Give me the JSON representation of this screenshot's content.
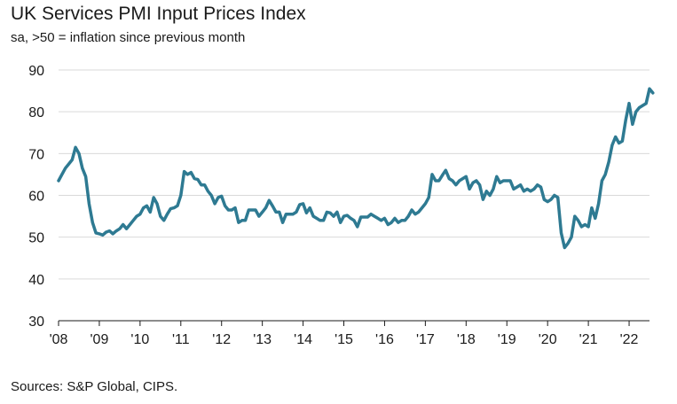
{
  "chart_data": {
    "type": "line",
    "title": "UK Services PMI Input Prices Index",
    "subtitle": "sa, >50 = inflation since previous month",
    "source": "Sources: S&P Global, CIPS.",
    "xlabel": "",
    "ylabel": "",
    "ylim": [
      30,
      90
    ],
    "yticks": [
      30,
      40,
      50,
      60,
      70,
      80,
      90
    ],
    "grid": true,
    "x_range": [
      2008.0,
      2022.5
    ],
    "xticks": [
      {
        "label": "'08",
        "x": 2008
      },
      {
        "label": "'09",
        "x": 2009
      },
      {
        "label": "'10",
        "x": 2010
      },
      {
        "label": "'11",
        "x": 2011
      },
      {
        "label": "'12",
        "x": 2012
      },
      {
        "label": "'13",
        "x": 2013
      },
      {
        "label": "'14",
        "x": 2014
      },
      {
        "label": "'15",
        "x": 2015
      },
      {
        "label": "'16",
        "x": 2016
      },
      {
        "label": "'17",
        "x": 2017
      },
      {
        "label": "'18",
        "x": 2018
      },
      {
        "label": "'19",
        "x": 2019
      },
      {
        "label": "'20",
        "x": 2020
      },
      {
        "label": "'21",
        "x": 2021
      },
      {
        "label": "'22",
        "x": 2022
      }
    ],
    "series": [
      {
        "name": "UK Services PMI Input Prices Index",
        "color": "#2e7a92",
        "start": "2008-01",
        "frequency": "monthly",
        "values": [
          63.5,
          65.0,
          66.5,
          67.5,
          68.5,
          71.5,
          70.0,
          66.5,
          64.5,
          58.0,
          53.5,
          51.0,
          50.8,
          50.5,
          51.2,
          51.5,
          50.8,
          51.5,
          52.0,
          53.0,
          52.0,
          53.0,
          54.0,
          55.0,
          55.5,
          57.0,
          57.5,
          56.0,
          59.5,
          58.0,
          55.0,
          54.0,
          55.5,
          56.8,
          57.0,
          57.5,
          60.0,
          65.7,
          65.0,
          65.5,
          64.0,
          63.8,
          62.5,
          62.5,
          61.0,
          60.0,
          58.0,
          59.5,
          59.8,
          57.5,
          56.5,
          56.5,
          57.0,
          53.5,
          54.0,
          54.0,
          56.5,
          56.5,
          56.5,
          55.0,
          56.0,
          57.0,
          58.8,
          57.5,
          56.0,
          56.0,
          53.5,
          55.5,
          55.5,
          55.5,
          56.0,
          57.8,
          58.0,
          55.8,
          57.0,
          55.0,
          54.5,
          54.0,
          54.0,
          56.0,
          55.8,
          55.0,
          56.0,
          53.5,
          55.0,
          55.2,
          54.5,
          54.0,
          52.5,
          54.8,
          54.8,
          54.8,
          55.5,
          55.0,
          54.5,
          54.0,
          54.5,
          53.0,
          53.5,
          54.5,
          53.5,
          54.0,
          54.0,
          55.0,
          56.5,
          55.5,
          56.0,
          57.0,
          58.0,
          59.5,
          65.0,
          63.5,
          63.5,
          64.8,
          66.0,
          64.0,
          63.5,
          62.5,
          63.5,
          64.0,
          64.5,
          61.5,
          63.0,
          63.5,
          62.5,
          59.0,
          61.0,
          60.0,
          61.5,
          64.5,
          63.0,
          63.5,
          63.5,
          63.5,
          61.5,
          62.0,
          62.5,
          61.0,
          61.5,
          61.0,
          61.5,
          62.5,
          62.0,
          59.0,
          58.5,
          59.0,
          60.0,
          59.5,
          51.0,
          47.5,
          48.5,
          50.0,
          55.0,
          54.0,
          52.5,
          53.0,
          52.5,
          57.0,
          54.5,
          58.0,
          63.5,
          65.0,
          68.0,
          72.0,
          74.0,
          72.5,
          73.0,
          78.0,
          82.0,
          77.0,
          80.0,
          81.0,
          81.5,
          82.0,
          85.5,
          84.5
        ]
      }
    ]
  }
}
